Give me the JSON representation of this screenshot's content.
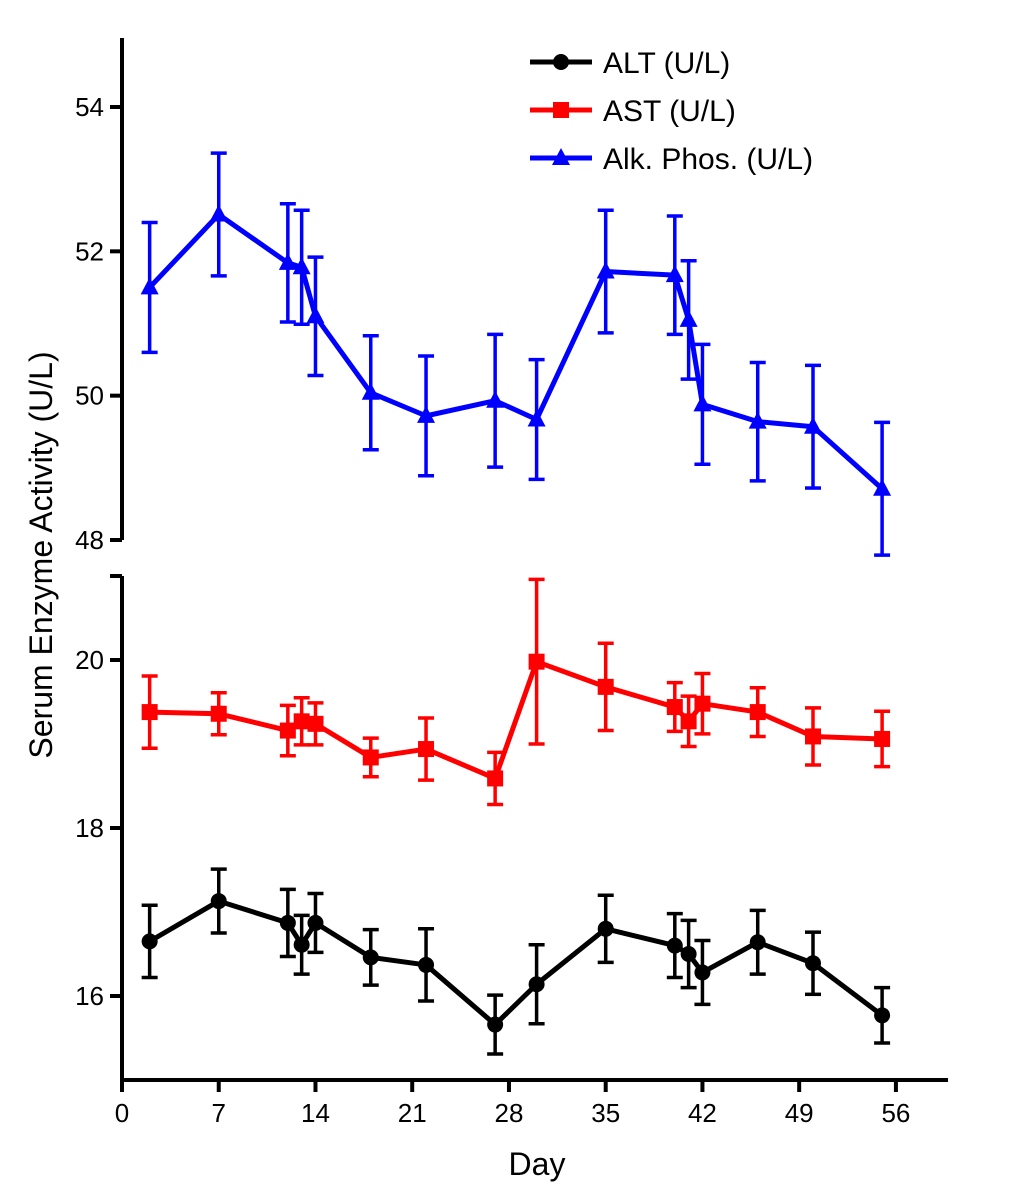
{
  "chart_data": {
    "type": "line",
    "title": "",
    "xlabel": "Day",
    "ylabel": "Serum Enzyme Activity (U/L)",
    "xlim": [
      0,
      59
    ],
    "xticks": [
      0,
      7,
      14,
      21,
      28,
      35,
      42,
      49,
      56
    ],
    "xtick_labels": [
      "0",
      "7",
      "14",
      "21",
      "28",
      "35",
      "42",
      "49",
      "56"
    ],
    "y_break": true,
    "upper_panel": {
      "ylim": [
        48,
        55
      ],
      "yticks": [
        48,
        50,
        52,
        54
      ],
      "ytick_labels": [
        "48",
        "50",
        "52",
        "54"
      ]
    },
    "lower_panel": {
      "ylim": [
        15,
        21
      ],
      "yticks": [
        16,
        18,
        20
      ],
      "ytick_labels": [
        "16",
        "18",
        "20"
      ]
    },
    "legend_position": "top-right",
    "series": [
      {
        "name": "ALT (U/L)",
        "panel": "lower",
        "color": "#000000",
        "marker": "circle",
        "x": [
          2,
          7,
          12,
          13,
          14,
          18,
          22,
          27,
          30,
          35,
          40,
          41,
          42,
          46,
          50,
          55
        ],
        "y": [
          16.65,
          17.13,
          16.87,
          16.61,
          16.87,
          16.46,
          16.37,
          15.66,
          16.14,
          16.8,
          16.6,
          16.5,
          16.28,
          16.64,
          16.39,
          15.77
        ],
        "err": [
          0.43,
          0.38,
          0.4,
          0.35,
          0.35,
          0.33,
          0.43,
          0.35,
          0.47,
          0.4,
          0.38,
          0.4,
          0.38,
          0.38,
          0.37,
          0.33
        ]
      },
      {
        "name": "AST (U/L)",
        "panel": "lower",
        "color": "#ff0000",
        "marker": "square",
        "x": [
          2,
          7,
          12,
          13,
          14,
          18,
          22,
          27,
          30,
          35,
          40,
          41,
          42,
          46,
          50,
          55
        ],
        "y": [
          19.38,
          19.36,
          19.16,
          19.27,
          19.24,
          18.84,
          18.94,
          18.59,
          19.98,
          19.68,
          19.44,
          19.27,
          19.48,
          19.38,
          19.09,
          19.06
        ],
        "err": [
          0.43,
          0.25,
          0.3,
          0.28,
          0.25,
          0.23,
          0.37,
          0.31,
          0.98,
          0.52,
          0.29,
          0.3,
          0.36,
          0.29,
          0.34,
          0.33
        ]
      },
      {
        "name": "Alk. Phos. (U/L)",
        "panel": "upper",
        "color": "#0000ff",
        "marker": "triangle",
        "x": [
          2,
          7,
          12,
          13,
          14,
          18,
          22,
          27,
          30,
          35,
          40,
          41,
          42,
          46,
          50,
          55
        ],
        "y": [
          51.5,
          52.51,
          51.84,
          51.78,
          51.1,
          50.04,
          49.72,
          49.93,
          49.67,
          51.72,
          51.67,
          51.05,
          49.88,
          49.64,
          49.57,
          48.71
        ],
        "err": [
          0.9,
          0.85,
          0.82,
          0.79,
          0.82,
          0.79,
          0.83,
          0.92,
          0.83,
          0.85,
          0.82,
          0.82,
          0.83,
          0.82,
          0.85,
          0.92
        ]
      }
    ]
  }
}
